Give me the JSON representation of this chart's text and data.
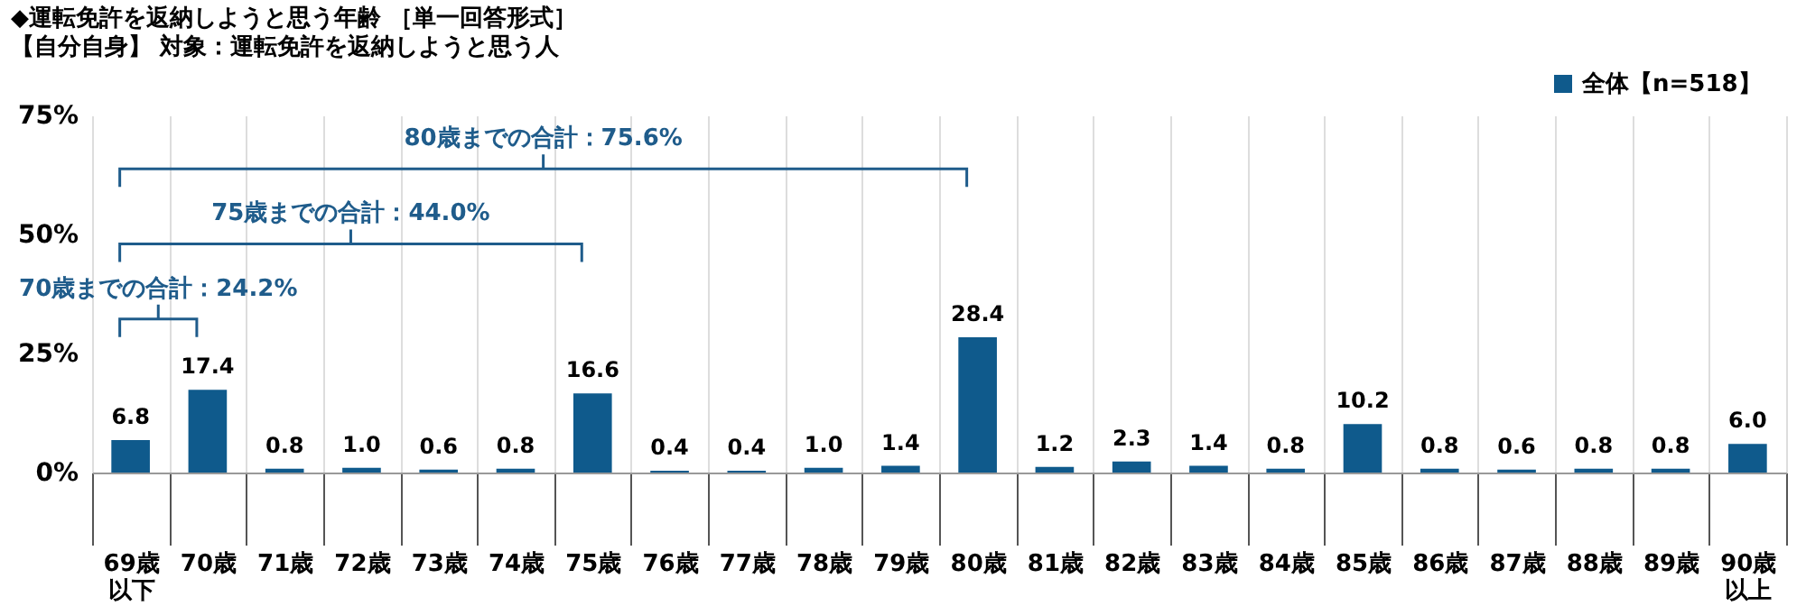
{
  "chart_data": {
    "type": "bar",
    "title": "◆運転免許を返納しようと思う年齢 ［単一回答形式］",
    "subtitle": "【自分自身】 対象：運転免許を返納しようと思う人",
    "categories": [
      "69歳以下",
      "70歳",
      "71歳",
      "72歳",
      "73歳",
      "74歳",
      "75歳",
      "76歳",
      "77歳",
      "78歳",
      "79歳",
      "80歳",
      "81歳",
      "82歳",
      "83歳",
      "84歳",
      "85歳",
      "86歳",
      "87歳",
      "88歳",
      "89歳",
      "90歳以上"
    ],
    "series": [
      {
        "name": "全体【n=518】",
        "color": "#0f5a8c",
        "values": [
          6.8,
          17.4,
          0.8,
          1.0,
          0.6,
          0.8,
          16.6,
          0.4,
          0.4,
          1.0,
          1.4,
          28.4,
          1.2,
          2.3,
          1.4,
          0.8,
          10.2,
          0.8,
          0.6,
          0.8,
          0.8,
          6.0
        ],
        "value_labels": [
          "6.8",
          "17.4",
          "0.8",
          "1.0",
          "0.6",
          "0.8",
          "16.6",
          "0.4",
          "0.4",
          "1.0",
          "1.4",
          "28.4",
          "1.2",
          "2.3",
          "1.4",
          "0.8",
          "10.2",
          "0.8",
          "0.6",
          "0.8",
          "0.8",
          "6.0"
        ]
      }
    ],
    "ylim": [
      0,
      75
    ],
    "yticks": [
      {
        "value": 0,
        "label": "0%"
      },
      {
        "value": 25,
        "label": "25%"
      },
      {
        "value": 50,
        "label": "50%"
      },
      {
        "value": 75,
        "label": "75%"
      }
    ],
    "annotations": [
      "70歳までの合計：24.2%",
      "75歳までの合計：44.0%",
      "80歳までの合計：75.6%"
    ],
    "grid": "x",
    "legend": "top right"
  }
}
